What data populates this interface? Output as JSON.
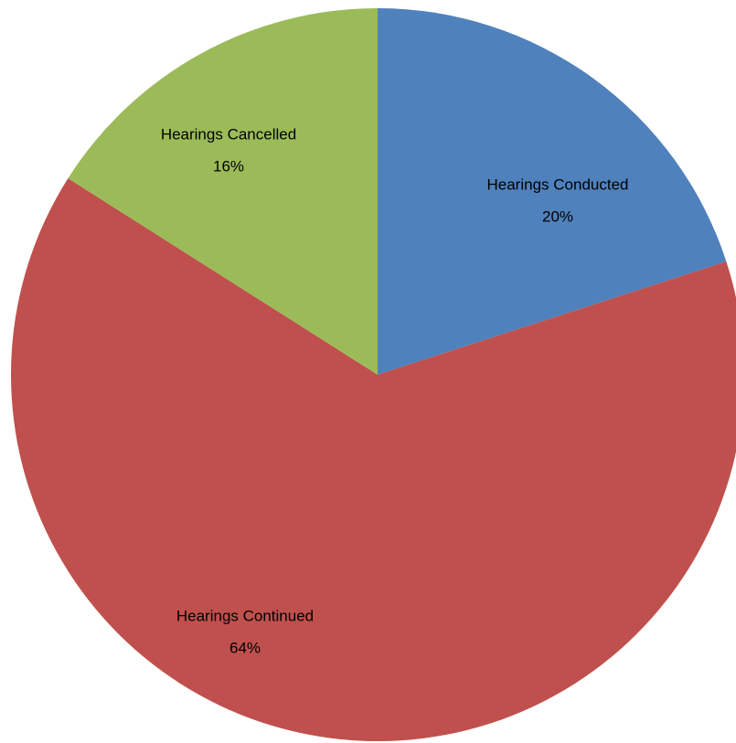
{
  "chart_data": {
    "type": "pie",
    "categories": [
      "Hearings Conducted",
      "Hearings Continued",
      "Hearings Cancelled"
    ],
    "values": [
      20,
      64,
      16
    ],
    "value_labels": [
      "20%",
      "64%",
      "16%"
    ],
    "colors": [
      "#4f81bd",
      "#c0504d",
      "#9bbb59"
    ]
  }
}
